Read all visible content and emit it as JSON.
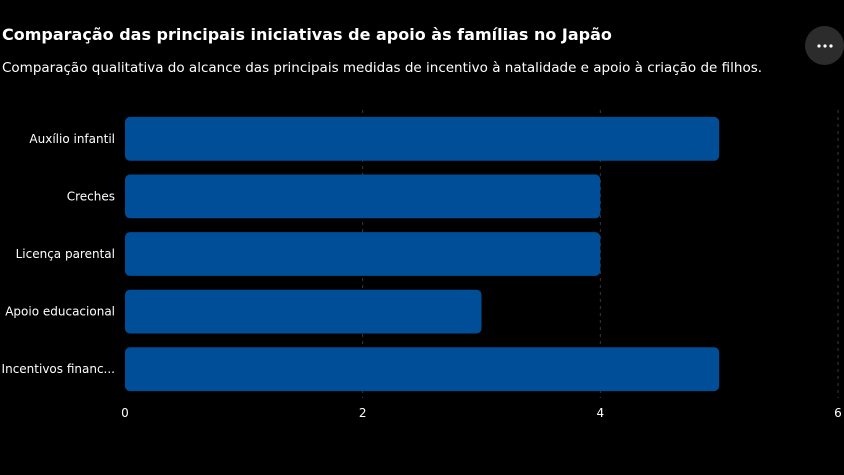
{
  "header": {
    "title": "Comparação das principais iniciativas de apoio às famílias no Japão",
    "subtitle": "Comparação qualitativa do alcance das principais medidas de incentivo à natalidade e apoio à criação de filhos.",
    "more_icon": "more-horizontal-icon"
  },
  "colors": {
    "bar": "#004e98",
    "grid": "#3a3a3a",
    "text": "#ffffff"
  },
  "chart_data": {
    "type": "bar",
    "orientation": "horizontal",
    "categories": [
      "Auxílio infantil",
      "Creches",
      "Licença parental",
      "Apoio educacional",
      "Incentivos financeiros"
    ],
    "category_tick_labels": [
      "Auxílio infantil",
      "Creches",
      "Licença parental",
      "Apoio educacional",
      "Incentivos financ..."
    ],
    "values": [
      5,
      4,
      4,
      3,
      5
    ],
    "xlim": [
      0,
      6
    ],
    "xticks": [
      0,
      2,
      4,
      6
    ],
    "grid": true
  }
}
